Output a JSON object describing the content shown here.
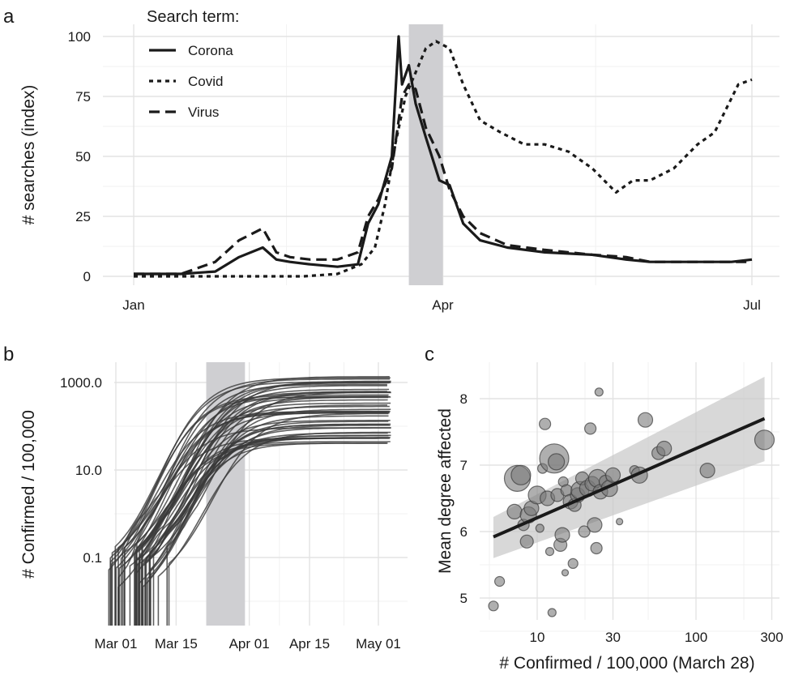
{
  "chart_data": [
    {
      "panel": "a",
      "type": "line",
      "xlabel": "",
      "ylabel": "# searches (index)",
      "x_ticks": [
        "Jan",
        "Apr",
        "Jul"
      ],
      "y_ticks": [
        "0",
        "25",
        "50",
        "75",
        "100"
      ],
      "ylim": [
        0,
        100
      ],
      "xlim": [
        "2020-01-01",
        "2020-07-01"
      ],
      "legend": {
        "title": "Search term:",
        "position": "top-left"
      },
      "shaded_interval": [
        "2020-03-22",
        "2020-04-01"
      ],
      "series": [
        {
          "name": "Corona",
          "dash": "solid",
          "x": [
            "2020-01-01",
            "2020-01-15",
            "2020-01-25",
            "2020-02-01",
            "2020-02-08",
            "2020-02-12",
            "2020-02-16",
            "2020-02-22",
            "2020-03-01",
            "2020-03-07",
            "2020-03-10",
            "2020-03-13",
            "2020-03-17",
            "2020-03-19",
            "2020-03-20",
            "2020-03-22",
            "2020-03-24",
            "2020-03-27",
            "2020-03-31",
            "2020-04-03",
            "2020-04-07",
            "2020-04-12",
            "2020-04-20",
            "2020-05-01",
            "2020-05-15",
            "2020-05-25",
            "2020-06-01",
            "2020-06-15",
            "2020-06-25",
            "2020-07-01"
          ],
          "values": [
            1,
            1,
            2,
            8,
            12,
            7,
            6,
            5,
            4,
            5,
            22,
            30,
            50,
            100,
            80,
            88,
            72,
            58,
            40,
            38,
            22,
            15,
            12,
            10,
            9,
            7,
            6,
            6,
            6,
            7
          ]
        },
        {
          "name": "Covid",
          "dash": "dotted",
          "x": [
            "2020-01-01",
            "2020-02-20",
            "2020-03-01",
            "2020-03-08",
            "2020-03-12",
            "2020-03-15",
            "2020-03-18",
            "2020-03-21",
            "2020-03-24",
            "2020-03-27",
            "2020-03-30",
            "2020-04-03",
            "2020-04-07",
            "2020-04-12",
            "2020-04-18",
            "2020-04-25",
            "2020-05-01",
            "2020-05-08",
            "2020-05-15",
            "2020-05-22",
            "2020-05-27",
            "2020-06-01",
            "2020-06-08",
            "2020-06-15",
            "2020-06-20",
            "2020-06-27",
            "2020-07-01"
          ],
          "values": [
            0,
            0,
            1,
            5,
            12,
            30,
            55,
            75,
            85,
            95,
            98,
            95,
            80,
            65,
            60,
            55,
            55,
            52,
            45,
            35,
            40,
            40,
            45,
            55,
            60,
            80,
            82
          ]
        },
        {
          "name": "Virus",
          "dash": "dashed",
          "x": [
            "2020-01-01",
            "2020-01-15",
            "2020-01-25",
            "2020-02-01",
            "2020-02-08",
            "2020-02-12",
            "2020-02-16",
            "2020-02-22",
            "2020-03-01",
            "2020-03-07",
            "2020-03-10",
            "2020-03-13",
            "2020-03-17",
            "2020-03-19",
            "2020-03-20",
            "2020-03-22",
            "2020-03-24",
            "2020-03-27",
            "2020-03-31",
            "2020-04-03",
            "2020-04-07",
            "2020-04-12",
            "2020-04-20",
            "2020-05-01",
            "2020-05-15",
            "2020-05-25",
            "2020-06-01",
            "2020-06-15",
            "2020-06-25",
            "2020-07-01"
          ],
          "values": [
            1,
            1,
            6,
            15,
            20,
            10,
            8,
            7,
            7,
            10,
            25,
            32,
            45,
            65,
            75,
            80,
            78,
            62,
            50,
            36,
            25,
            18,
            13,
            11,
            9,
            8,
            6,
            6,
            6,
            6
          ]
        }
      ]
    },
    {
      "panel": "b",
      "type": "line",
      "xlabel": "",
      "ylabel": "# Confirmed / 100,000",
      "x_ticks": [
        "Mar 01",
        "Mar 15",
        "Apr 01",
        "Apr 15",
        "May 01"
      ],
      "y_ticks": [
        "0.1",
        "10.0",
        "1000.0"
      ],
      "y_scale": "log10",
      "ylim": [
        0.003,
        2000
      ],
      "xlim": [
        "2020-02-26",
        "2020-05-06"
      ],
      "shaded_interval": [
        "2020-03-22",
        "2020-03-31"
      ],
      "state_lines": {
        "count": 50,
        "start_day_range": [
          0,
          12
        ],
        "final_value_range": [
          40,
          1500
        ]
      }
    },
    {
      "panel": "c",
      "type": "scatter",
      "xlabel": "# Confirmed / 100,000 (March 28)",
      "ylabel": "Mean degree affected",
      "x_scale": "log10",
      "x_ticks": [
        "10",
        "30",
        "100",
        "300"
      ],
      "y_ticks": [
        "5",
        "6",
        "7",
        "8"
      ],
      "xlim": [
        4.5,
        330
      ],
      "ylim": [
        4.6,
        8.3
      ],
      "fit": {
        "x": [
          5.3,
          270
        ],
        "y": [
          5.92,
          7.7
        ],
        "ci_low": [
          5.6,
          7.06
        ],
        "ci_high": [
          6.22,
          8.33
        ]
      },
      "points": [
        {
          "x": 5.3,
          "y": 4.88,
          "size": 6
        },
        {
          "x": 5.8,
          "y": 5.25,
          "size": 6
        },
        {
          "x": 7.2,
          "y": 6.3,
          "size": 9
        },
        {
          "x": 7.5,
          "y": 6.8,
          "size": 16
        },
        {
          "x": 7.9,
          "y": 6.85,
          "size": 12
        },
        {
          "x": 8.2,
          "y": 6.1,
          "size": 7
        },
        {
          "x": 8.6,
          "y": 5.85,
          "size": 8
        },
        {
          "x": 8.8,
          "y": 6.25,
          "size": 10
        },
        {
          "x": 9.2,
          "y": 6.35,
          "size": 9
        },
        {
          "x": 10,
          "y": 6.55,
          "size": 11
        },
        {
          "x": 10.4,
          "y": 6.05,
          "size": 5
        },
        {
          "x": 10.8,
          "y": 6.95,
          "size": 6
        },
        {
          "x": 11.2,
          "y": 7.62,
          "size": 7
        },
        {
          "x": 11.6,
          "y": 6.5,
          "size": 9
        },
        {
          "x": 12,
          "y": 5.7,
          "size": 5
        },
        {
          "x": 12.4,
          "y": 4.78,
          "size": 5
        },
        {
          "x": 12.8,
          "y": 7.1,
          "size": 18
        },
        {
          "x": 13.2,
          "y": 7.05,
          "size": 10
        },
        {
          "x": 13.4,
          "y": 6.55,
          "size": 8
        },
        {
          "x": 14,
          "y": 5.8,
          "size": 8
        },
        {
          "x": 14.4,
          "y": 5.95,
          "size": 9
        },
        {
          "x": 14.6,
          "y": 6.75,
          "size": 6
        },
        {
          "x": 15,
          "y": 5.38,
          "size": 4
        },
        {
          "x": 15.3,
          "y": 6.62,
          "size": 7
        },
        {
          "x": 16.2,
          "y": 6.45,
          "size": 9
        },
        {
          "x": 16.8,
          "y": 5.52,
          "size": 6
        },
        {
          "x": 17.2,
          "y": 6.4,
          "size": 8
        },
        {
          "x": 18,
          "y": 6.55,
          "size": 9
        },
        {
          "x": 18.6,
          "y": 6.62,
          "size": 11
        },
        {
          "x": 19.2,
          "y": 6.8,
          "size": 8
        },
        {
          "x": 19.8,
          "y": 6.0,
          "size": 7
        },
        {
          "x": 20.8,
          "y": 6.65,
          "size": 10
        },
        {
          "x": 21.6,
          "y": 7.55,
          "size": 7
        },
        {
          "x": 22.2,
          "y": 6.72,
          "size": 9
        },
        {
          "x": 23,
          "y": 6.1,
          "size": 9
        },
        {
          "x": 23.6,
          "y": 5.75,
          "size": 7
        },
        {
          "x": 24,
          "y": 6.8,
          "size": 11
        },
        {
          "x": 24.5,
          "y": 8.1,
          "size": 5
        },
        {
          "x": 25,
          "y": 6.6,
          "size": 9
        },
        {
          "x": 27,
          "y": 6.75,
          "size": 8
        },
        {
          "x": 28.5,
          "y": 6.65,
          "size": 10
        },
        {
          "x": 30,
          "y": 6.85,
          "size": 9
        },
        {
          "x": 33,
          "y": 6.15,
          "size": 4
        },
        {
          "x": 41,
          "y": 6.92,
          "size": 6
        },
        {
          "x": 44,
          "y": 6.85,
          "size": 10
        },
        {
          "x": 48,
          "y": 7.68,
          "size": 9
        },
        {
          "x": 58,
          "y": 7.18,
          "size": 8
        },
        {
          "x": 63,
          "y": 7.25,
          "size": 9
        },
        {
          "x": 118,
          "y": 6.92,
          "size": 9
        },
        {
          "x": 270,
          "y": 7.38,
          "size": 12
        }
      ]
    }
  ]
}
